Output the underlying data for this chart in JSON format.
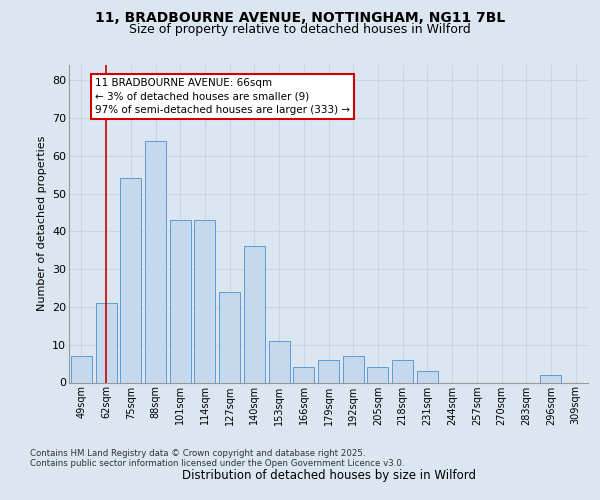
{
  "title1": "11, BRADBOURNE AVENUE, NOTTINGHAM, NG11 7BL",
  "title2": "Size of property relative to detached houses in Wilford",
  "xlabel": "Distribution of detached houses by size in Wilford",
  "ylabel": "Number of detached properties",
  "footer1": "Contains HM Land Registry data © Crown copyright and database right 2025.",
  "footer2": "Contains public sector information licensed under the Open Government Licence v3.0.",
  "categories": [
    "49sqm",
    "62sqm",
    "75sqm",
    "88sqm",
    "101sqm",
    "114sqm",
    "127sqm",
    "140sqm",
    "153sqm",
    "166sqm",
    "179sqm",
    "192sqm",
    "205sqm",
    "218sqm",
    "231sqm",
    "244sqm",
    "257sqm",
    "270sqm",
    "283sqm",
    "296sqm",
    "309sqm"
  ],
  "values": [
    7,
    21,
    54,
    64,
    43,
    43,
    24,
    36,
    11,
    4,
    6,
    7,
    4,
    6,
    3,
    0,
    0,
    0,
    0,
    2,
    0
  ],
  "bar_color": "#c5d8ed",
  "bar_edge_color": "#5b9bd5",
  "property_line_x": 1,
  "annotation_text": "11 BRADBOURNE AVENUE: 66sqm\n← 3% of detached houses are smaller (9)\n97% of semi-detached houses are larger (333) →",
  "annotation_box_color": "#ffffff",
  "annotation_box_edge": "#cc0000",
  "red_line_color": "#cc0000",
  "ylim": [
    0,
    84
  ],
  "yticks": [
    0,
    10,
    20,
    30,
    40,
    50,
    60,
    70,
    80
  ],
  "grid_color": "#c8d4e8",
  "fig_bg_color": "#dce6f0",
  "plot_bg_color": "#dce6f0"
}
